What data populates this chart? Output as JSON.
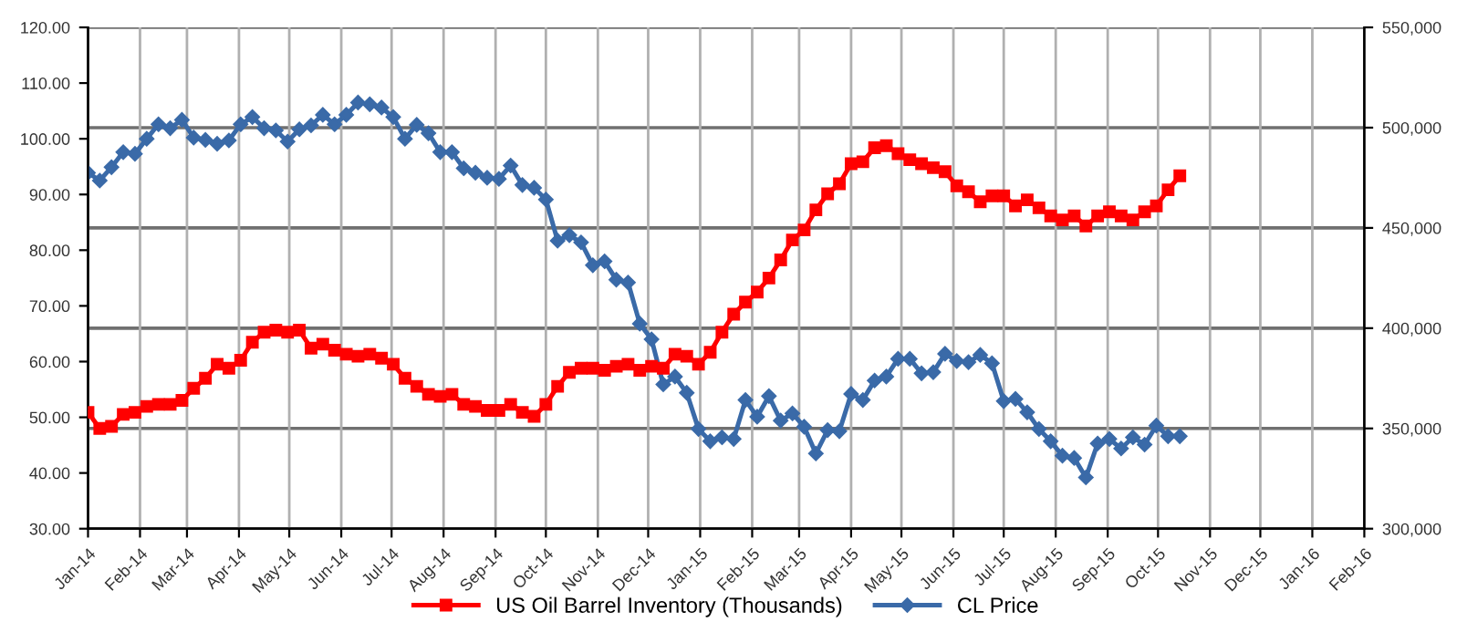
{
  "chart_data": {
    "type": "line",
    "x": [
      "2014-01-01",
      "2014-01-08",
      "2014-01-15",
      "2014-01-22",
      "2014-01-29",
      "2014-02-05",
      "2014-02-12",
      "2014-02-19",
      "2014-02-26",
      "2014-03-05",
      "2014-03-12",
      "2014-03-19",
      "2014-03-26",
      "2014-04-02",
      "2014-04-09",
      "2014-04-16",
      "2014-04-23",
      "2014-04-30",
      "2014-05-07",
      "2014-05-14",
      "2014-05-21",
      "2014-05-28",
      "2014-06-04",
      "2014-06-11",
      "2014-06-18",
      "2014-06-25",
      "2014-07-02",
      "2014-07-09",
      "2014-07-16",
      "2014-07-23",
      "2014-07-30",
      "2014-08-06",
      "2014-08-13",
      "2014-08-20",
      "2014-08-27",
      "2014-09-03",
      "2014-09-10",
      "2014-09-17",
      "2014-09-24",
      "2014-10-01",
      "2014-10-08",
      "2014-10-15",
      "2014-10-22",
      "2014-10-29",
      "2014-11-05",
      "2014-11-12",
      "2014-11-19",
      "2014-11-26",
      "2014-12-03",
      "2014-12-10",
      "2014-12-17",
      "2014-12-24",
      "2014-12-31",
      "2015-01-07",
      "2015-01-14",
      "2015-01-21",
      "2015-01-28",
      "2015-02-04",
      "2015-02-11",
      "2015-02-18",
      "2015-02-25",
      "2015-03-04",
      "2015-03-11",
      "2015-03-18",
      "2015-03-25",
      "2015-04-01",
      "2015-04-08",
      "2015-04-15",
      "2015-04-22",
      "2015-04-29",
      "2015-05-06",
      "2015-05-13",
      "2015-05-20",
      "2015-05-27",
      "2015-06-03",
      "2015-06-10",
      "2015-06-17",
      "2015-06-24",
      "2015-07-01",
      "2015-07-08",
      "2015-07-15",
      "2015-07-22",
      "2015-07-29",
      "2015-08-05",
      "2015-08-12",
      "2015-08-19",
      "2015-08-26",
      "2015-09-02",
      "2015-09-09",
      "2015-09-16",
      "2015-09-23",
      "2015-09-30",
      "2015-10-07",
      "2015-10-14"
    ],
    "series": [
      {
        "name": "US Oil Barrel Inventory (Thousands)",
        "color": "#ff0000",
        "axis": "y2",
        "marker": "square",
        "values": [
          358000,
          350000,
          351000,
          357000,
          358000,
          361000,
          362000,
          362000,
          364000,
          370000,
          375000,
          382000,
          380000,
          384000,
          393000,
          398000,
          399000,
          398000,
          399000,
          390000,
          392000,
          389000,
          387000,
          386000,
          387000,
          385000,
          382000,
          375000,
          371000,
          367000,
          366000,
          367000,
          362000,
          361000,
          359000,
          359000,
          362000,
          358000,
          356000,
          362000,
          371000,
          378000,
          380000,
          380000,
          379000,
          381000,
          382000,
          379000,
          381000,
          380000,
          387000,
          386000,
          382000,
          388000,
          398000,
          407000,
          413000,
          418000,
          425000,
          434000,
          444000,
          449000,
          459000,
          467000,
          472000,
          482000,
          483000,
          490000,
          491000,
          487000,
          484000,
          482000,
          480000,
          478000,
          471000,
          468000,
          463000,
          466000,
          466000,
          461000,
          464000,
          460000,
          456000,
          454000,
          456000,
          451000,
          456000,
          458000,
          456000,
          454000,
          458000,
          461000,
          469000,
          476000
        ]
      },
      {
        "name": "CL Price",
        "color": "#3a6aa8",
        "marker": "diamond",
        "values": [
          93.9,
          92.5,
          94.9,
          97.6,
          97.3,
          100.0,
          102.6,
          101.9,
          103.4,
          100.2,
          99.8,
          99.1,
          99.7,
          102.6,
          103.9,
          101.9,
          101.5,
          99.5,
          101.7,
          102.4,
          104.3,
          102.6,
          104.3,
          106.5,
          106.2,
          105.6,
          103.9,
          100.0,
          102.5,
          101.0,
          97.6,
          97.6,
          94.7,
          93.9,
          93.0,
          92.8,
          95.2,
          91.7,
          91.2,
          89.1,
          81.7,
          82.7,
          81.4,
          77.3,
          78.0,
          74.7,
          74.2,
          66.8,
          64.0,
          55.9,
          57.3,
          54.4,
          47.9,
          45.7,
          46.4,
          46.1,
          53.1,
          50.1,
          53.8,
          49.4,
          50.7,
          48.3,
          43.5,
          47.7,
          47.5,
          54.2,
          53.1,
          56.6,
          57.3,
          60.5,
          60.5,
          57.9,
          58.1,
          61.4,
          60.1,
          59.9,
          61.2,
          59.7,
          52.9,
          53.3,
          50.9,
          47.9,
          45.7,
          43.1,
          42.7,
          39.2,
          45.3,
          46.1,
          44.4,
          46.4,
          45.1,
          48.5,
          46.6,
          46.6
        ]
      }
    ],
    "xlim": [
      "2014-01-01",
      "2016-02-01"
    ],
    "xticks": [
      {
        "value": "2014-01-01",
        "label": "Jan-14"
      },
      {
        "value": "2014-02-01",
        "label": "Feb-14"
      },
      {
        "value": "2014-03-01",
        "label": "Mar-14"
      },
      {
        "value": "2014-04-01",
        "label": "Apr-14"
      },
      {
        "value": "2014-05-01",
        "label": "May-14"
      },
      {
        "value": "2014-06-01",
        "label": "Jun-14"
      },
      {
        "value": "2014-07-01",
        "label": "Jul-14"
      },
      {
        "value": "2014-08-01",
        "label": "Aug-14"
      },
      {
        "value": "2014-09-01",
        "label": "Sep-14"
      },
      {
        "value": "2014-10-01",
        "label": "Oct-14"
      },
      {
        "value": "2014-11-01",
        "label": "Nov-14"
      },
      {
        "value": "2014-12-01",
        "label": "Dec-14"
      },
      {
        "value": "2015-01-01",
        "label": "Jan-15"
      },
      {
        "value": "2015-02-01",
        "label": "Feb-15"
      },
      {
        "value": "2015-03-01",
        "label": "Mar-15"
      },
      {
        "value": "2015-04-01",
        "label": "Apr-15"
      },
      {
        "value": "2015-05-01",
        "label": "May-15"
      },
      {
        "value": "2015-06-01",
        "label": "Jun-15"
      },
      {
        "value": "2015-07-01",
        "label": "Jul-15"
      },
      {
        "value": "2015-08-01",
        "label": "Aug-15"
      },
      {
        "value": "2015-09-01",
        "label": "Sep-15"
      },
      {
        "value": "2015-10-01",
        "label": "Oct-15"
      },
      {
        "value": "2015-11-01",
        "label": "Nov-15"
      },
      {
        "value": "2015-12-01",
        "label": "Dec-15"
      },
      {
        "value": "2016-01-01",
        "label": "Jan-16"
      },
      {
        "value": "2016-02-01",
        "label": "Feb-16"
      }
    ],
    "ylim": [
      30,
      120
    ],
    "yticks": [
      {
        "value": 30,
        "label": "30.00"
      },
      {
        "value": 40,
        "label": "40.00"
      },
      {
        "value": 50,
        "label": "50.00"
      },
      {
        "value": 60,
        "label": "60.00"
      },
      {
        "value": 70,
        "label": "70.00"
      },
      {
        "value": 80,
        "label": "80.00"
      },
      {
        "value": 90,
        "label": "90.00"
      },
      {
        "value": 100,
        "label": "100.00"
      },
      {
        "value": 110,
        "label": "110.00"
      },
      {
        "value": 120,
        "label": "120.00"
      }
    ],
    "y2lim": [
      300000,
      550000
    ],
    "y2ticks": [
      {
        "value": 300000,
        "label": "300,000"
      },
      {
        "value": 350000,
        "label": "350,000"
      },
      {
        "value": 400000,
        "label": "400,000"
      },
      {
        "value": 450000,
        "label": "450,000"
      },
      {
        "value": 500000,
        "label": "500,000"
      },
      {
        "value": 550000,
        "label": "550,000"
      }
    ],
    "grid": true,
    "legend": "bottom",
    "line_style": "solid"
  }
}
